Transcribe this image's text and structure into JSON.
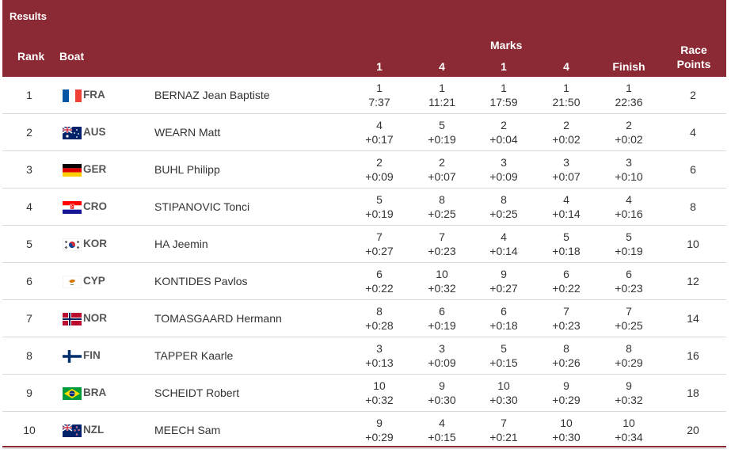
{
  "header": {
    "results": "Results",
    "rank": "Rank",
    "boat": "Boat",
    "marks": "Marks",
    "columns": [
      "1",
      "4",
      "1",
      "4",
      "Finish"
    ],
    "race_points_1": "Race",
    "race_points_2": "Points"
  },
  "colors": {
    "header_bg": "#8b2a34",
    "header_text": "#ffffff",
    "row_border": "#d9d9d9"
  },
  "rows": [
    {
      "rank": "1",
      "flag": "flag-fra-icon",
      "noc": "FRA",
      "name": "BERNAZ Jean Baptiste",
      "m1": [
        "1",
        "7:37"
      ],
      "m2": [
        "1",
        "11:21"
      ],
      "m3": [
        "1",
        "17:59"
      ],
      "m4": [
        "1",
        "21:50"
      ],
      "finish": [
        "1",
        "22:36"
      ],
      "points": "2"
    },
    {
      "rank": "2",
      "flag": "flag-aus-icon",
      "noc": "AUS",
      "name": "WEARN Matt",
      "m1": [
        "4",
        "+0:17"
      ],
      "m2": [
        "5",
        "+0:19"
      ],
      "m3": [
        "2",
        "+0:04"
      ],
      "m4": [
        "2",
        "+0:02"
      ],
      "finish": [
        "2",
        "+0:02"
      ],
      "points": "4"
    },
    {
      "rank": "3",
      "flag": "flag-ger-icon",
      "noc": "GER",
      "name": "BUHL Philipp",
      "m1": [
        "2",
        "+0:09"
      ],
      "m2": [
        "2",
        "+0:07"
      ],
      "m3": [
        "3",
        "+0:09"
      ],
      "m4": [
        "3",
        "+0:07"
      ],
      "finish": [
        "3",
        "+0:10"
      ],
      "points": "6"
    },
    {
      "rank": "4",
      "flag": "flag-cro-icon",
      "noc": "CRO",
      "name": "STIPANOVIC Tonci",
      "m1": [
        "5",
        "+0:19"
      ],
      "m2": [
        "8",
        "+0:25"
      ],
      "m3": [
        "8",
        "+0:25"
      ],
      "m4": [
        "4",
        "+0:14"
      ],
      "finish": [
        "4",
        "+0:16"
      ],
      "points": "8"
    },
    {
      "rank": "5",
      "flag": "flag-kor-icon",
      "noc": "KOR",
      "name": "HA Jeemin",
      "m1": [
        "7",
        "+0:27"
      ],
      "m2": [
        "7",
        "+0:23"
      ],
      "m3": [
        "4",
        "+0:14"
      ],
      "m4": [
        "5",
        "+0:18"
      ],
      "finish": [
        "5",
        "+0:19"
      ],
      "points": "10"
    },
    {
      "rank": "6",
      "flag": "flag-cyp-icon",
      "noc": "CYP",
      "name": "KONTIDES Pavlos",
      "m1": [
        "6",
        "+0:22"
      ],
      "m2": [
        "10",
        "+0:32"
      ],
      "m3": [
        "9",
        "+0:27"
      ],
      "m4": [
        "6",
        "+0:22"
      ],
      "finish": [
        "6",
        "+0:23"
      ],
      "points": "12"
    },
    {
      "rank": "7",
      "flag": "flag-nor-icon",
      "noc": "NOR",
      "name": "TOMASGAARD Hermann",
      "m1": [
        "8",
        "+0:28"
      ],
      "m2": [
        "6",
        "+0:19"
      ],
      "m3": [
        "6",
        "+0:18"
      ],
      "m4": [
        "7",
        "+0:23"
      ],
      "finish": [
        "7",
        "+0:25"
      ],
      "points": "14"
    },
    {
      "rank": "8",
      "flag": "flag-fin-icon",
      "noc": "FIN",
      "name": "TAPPER Kaarle",
      "m1": [
        "3",
        "+0:13"
      ],
      "m2": [
        "3",
        "+0:09"
      ],
      "m3": [
        "5",
        "+0:15"
      ],
      "m4": [
        "8",
        "+0:26"
      ],
      "finish": [
        "8",
        "+0:29"
      ],
      "points": "16"
    },
    {
      "rank": "9",
      "flag": "flag-bra-icon",
      "noc": "BRA",
      "name": "SCHEIDT Robert",
      "m1": [
        "10",
        "+0:32"
      ],
      "m2": [
        "9",
        "+0:30"
      ],
      "m3": [
        "10",
        "+0:30"
      ],
      "m4": [
        "9",
        "+0:29"
      ],
      "finish": [
        "9",
        "+0:32"
      ],
      "points": "18"
    },
    {
      "rank": "10",
      "flag": "flag-nzl-icon",
      "noc": "NZL",
      "name": "MEECH Sam",
      "m1": [
        "9",
        "+0:29"
      ],
      "m2": [
        "4",
        "+0:15"
      ],
      "m3": [
        "7",
        "+0:21"
      ],
      "m4": [
        "10",
        "+0:30"
      ],
      "finish": [
        "10",
        "+0:34"
      ],
      "points": "20"
    }
  ]
}
